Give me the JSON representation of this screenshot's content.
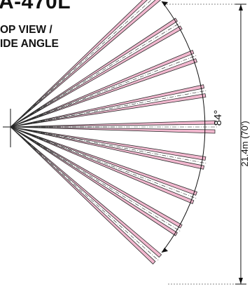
{
  "model_title": "A-470L",
  "view_label_1": "OP VIEW /",
  "view_label_2": "IDE ANGLE",
  "angle_label": "84°",
  "distance_label": "21.4m (70')",
  "beams": {
    "count": 9,
    "span_degrees": 84,
    "fill_color": "#f2b8cf",
    "outline_color": "#2b2b2b"
  }
}
